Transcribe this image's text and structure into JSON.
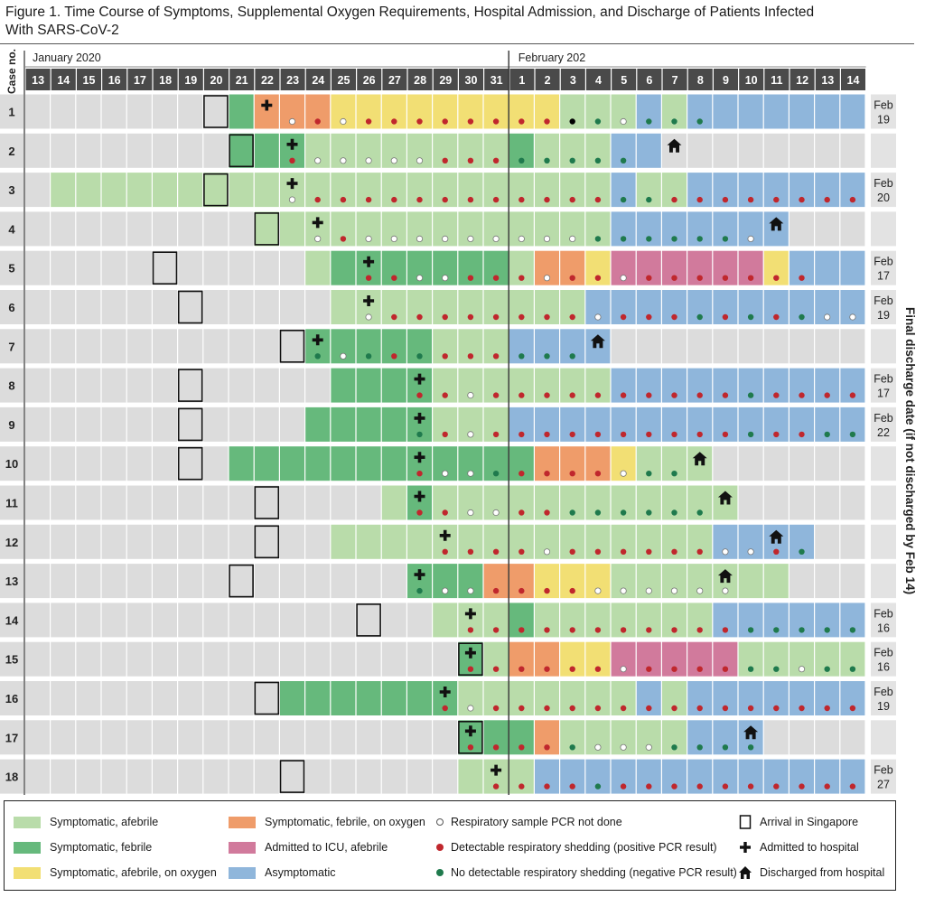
{
  "title": {
    "line1": "Figure 1. Time Course of Symptoms, Supplemental Oxygen Requirements, Hospital Admission, and Discharge of Patients Infected",
    "line2": "With SARS-CoV-2"
  },
  "chart_data": {
    "type": "table",
    "month_labels": [
      "January 2020",
      "February 202"
    ],
    "row_axis_label": "Case no.",
    "side_label": "Final discharge date (if not discharged by Feb 14)",
    "days": [
      "13",
      "14",
      "15",
      "16",
      "17",
      "18",
      "19",
      "20",
      "21",
      "22",
      "23",
      "24",
      "25",
      "26",
      "27",
      "28",
      "29",
      "30",
      "31",
      "1",
      "2",
      "3",
      "4",
      "5",
      "6",
      "7",
      "8",
      "9",
      "10",
      "11",
      "12",
      "13",
      "14"
    ],
    "state_colors": {
      "N": "#dcdcdc",
      "A": "#b9dcaa",
      "F": "#66b97c",
      "O": "#ef9c6a",
      "Y": "#f2df74",
      "I": "#d17a9c",
      "B": "#8fb6db"
    },
    "cases": [
      {
        "case": "1",
        "states": "NNNNNNNNFOOOYYYYYYYYYAAABABBBBBBB",
        "arrival": "20",
        "admit": "22",
        "discharge": null,
        "final": [
          "Feb",
          "19"
        ],
        "pcr": "0000000000WRWRRRRRRRRNGWGGG000000"
      },
      {
        "case": "2",
        "states": "NNNNNNNNFFFAAAAAAAAFAAABBNNNNNNNN",
        "arrival": "21",
        "admit": "23",
        "discharge": "7",
        "final": null,
        "pcr": "0000000000RWWWWWRRRGGGGG000000000"
      },
      {
        "case": "3",
        "states": "NAAAAAAAAAAAAAAAAAAAAAABAABBBBBBB",
        "arrival": "20",
        "admit": "23",
        "discharge": null,
        "final": [
          "Feb",
          "20"
        ],
        "pcr": "0000000000WRRRRRRRRRRRRGGRRRRRRRR"
      },
      {
        "case": "4",
        "states": "NNNNNNNNNAAAAAAAAAAAAAABBBBBBBNNN",
        "arrival": "22",
        "admit": "24",
        "discharge": "11",
        "final": null,
        "pcr": "00000000000WRWWWWWWWWWGGGGGGW0000"
      },
      {
        "case": "5",
        "states": "NNNNNNNNNNNAFFFFFFFAOOYIIIIIIYBBB",
        "arrival": "18",
        "admit": "26",
        "discharge": null,
        "final": [
          "Feb",
          "17"
        ],
        "pcr": "0000000000000RRWWRRRWRRWRRRRRRR00"
      },
      {
        "case": "6",
        "states": "NNNNNNNNNNNNAAAAAAAAAABBBBBBBBBBB",
        "arrival": "19",
        "admit": "26",
        "discharge": null,
        "final": [
          "Feb",
          "19"
        ],
        "pcr": "0000000000000WRRRRRRRRWRRRGRGRGWW"
      },
      {
        "case": "7",
        "states": "NNNNNNNNNNNFFFFFAAABBBBNNNNNNNNNN",
        "arrival": "23",
        "admit": "24",
        "discharge": "4",
        "final": null,
        "pcr": "00000000000GWGRGRRRGGG00000000000"
      },
      {
        "case": "8",
        "states": "NNNNNNNNNNNNFFFFAAAAAAABBBBBBBBBB",
        "arrival": "19",
        "admit": "28",
        "discharge": null,
        "final": [
          "Feb",
          "17"
        ],
        "pcr": "000000000000000RRWRRRRRRRRRRGRRRR"
      },
      {
        "case": "9",
        "states": "NNNNNNNNNNNFFFFFAAABBBBBBBBBBBBBB",
        "arrival": "19",
        "admit": "28",
        "discharge": null,
        "final": [
          "Feb",
          "22"
        ],
        "pcr": "000000000000000GRWRRRRRRRRRRGRRGG"
      },
      {
        "case": "10",
        "states": "NNNNNNNNFFFFFFFFFFFFOOOYAAANNNNNN",
        "arrival": "19",
        "admit": "28",
        "discharge": "8",
        "final": null,
        "pcr": "000000000000000RWWGRRRRWGG0000000"
      },
      {
        "case": "11",
        "states": "NNNNNNNNNNNNNNAFAAAAAAAAAAAANNNNN",
        "arrival": "22",
        "admit": "28",
        "discharge": "9",
        "final": null,
        "pcr": "000000000000000RRWWRRGGGGGG000000"
      },
      {
        "case": "12",
        "states": "NNNNNNNNNNNNAAAAAAAAAAAAAAABBBBNN",
        "arrival": "22",
        "admit": "29",
        "discharge": "11",
        "final": null,
        "pcr": "0000000000000000RRRRWRRRRRRWWRG00"
      },
      {
        "case": "13",
        "states": "NNNNNNNNNNNNNNNFFFOOYYYAAAAAAANNN",
        "arrival": "21",
        "admit": "28",
        "discharge": "9",
        "final": null,
        "pcr": "000000000000000GWWRRRRWWWWWW00000"
      },
      {
        "case": "14",
        "states": "NNNNNNNNNNNNNNNNAAAFAAAAAAABBBBBB",
        "arrival": "26",
        "admit": "30",
        "discharge": null,
        "final": [
          "Feb",
          "16"
        ],
        "pcr": "00000000000000000RRRRRRRRRRRGGGGG"
      },
      {
        "case": "15",
        "states": "NNNNNNNNNNNNNNNNNFAOOYYIIIIIAAAAA",
        "arrival": "30",
        "admit": "30",
        "discharge": null,
        "final": [
          "Feb",
          "16"
        ],
        "pcr": "00000000000000000RRRRRRWRRRRGGWGG"
      },
      {
        "case": "16",
        "states": "NNNNNNNNNNFFFFFFFAAAAAAABABBBBBBB",
        "arrival": "22",
        "admit": "29",
        "discharge": null,
        "final": [
          "Feb",
          "19"
        ],
        "pcr": "0000000000000000RWRRRRRRRRRRRRRRR"
      },
      {
        "case": "17",
        "states": "NNNNNNNNNNNNNNNNNFFFOAAAAABBBNNNN",
        "arrival": "30",
        "admit": "30",
        "discharge": "10",
        "final": null,
        "pcr": "00000000000000000RRRRGWWWGGGG0000"
      },
      {
        "case": "18",
        "states": "NNNNNNNNNNNNNNNNNAAABBBBBBBBBBBBB",
        "arrival": "23",
        "admit": "31",
        "discharge": null,
        "final": [
          "Feb",
          "27"
        ],
        "pcr": "000000000000000000RRRRGRRRRRRRRRR"
      }
    ],
    "pcr_colors": {
      "W": "#ffffff",
      "R": "#c0272d",
      "G": "#1f7a4d"
    }
  },
  "legend": {
    "symptomatic_afebrile": "Symptomatic, afebrile",
    "symptomatic_febrile": "Symptomatic, febrile",
    "afebrile_oxygen": "Symptomatic, afebrile, on oxygen",
    "febrile_oxygen": "Symptomatic, febrile, on oxygen",
    "icu": "Admitted to ICU, afebrile",
    "asymptomatic": "Asymptomatic",
    "pcr_not_done": "Respiratory sample PCR not done",
    "pcr_positive": "Detectable respiratory shedding (positive PCR result)",
    "pcr_negative": "No detectable respiratory shedding (negative PCR result)",
    "arrival": "Arrival in Singapore",
    "admitted": "Admitted to hospital",
    "discharged": "Discharged from hospital"
  }
}
